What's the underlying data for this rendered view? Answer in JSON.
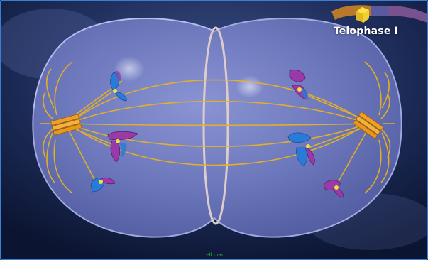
{
  "stage_label": "Telophase I",
  "caption": "cell man",
  "colors": {
    "background": "#0e1a3a",
    "cell_fill": "#7a84c8",
    "spindle": "#e9b21f",
    "centriole": "#f0a020",
    "chromosome_blue": "#2a7bd8",
    "chromosome_purple": "#9a3aa8",
    "centromere": "#f2e040",
    "cleavage_ring": "#d8c8c8",
    "frame_border": "#3a7fd0"
  },
  "icons": [
    "stage-progress-icon",
    "centriole-icon"
  ]
}
